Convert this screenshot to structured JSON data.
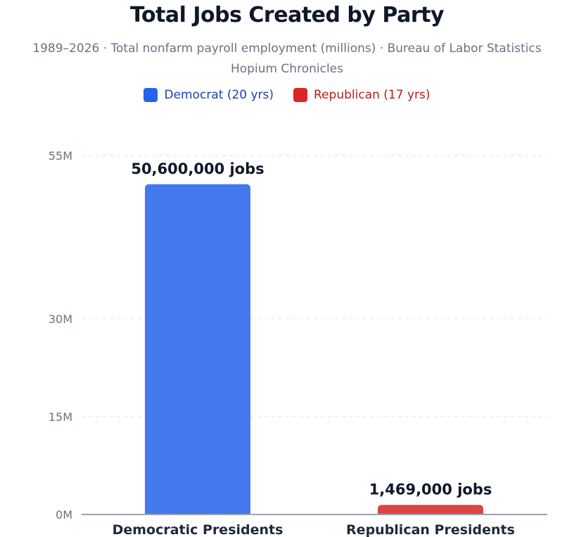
{
  "title": "Total Jobs Created by Party",
  "subtitle_line1": "1989–2026 · Total nonfarm payroll employment (millions) · Bureau of Labor Statistics",
  "subtitle_line2": "Hopium Chronicles",
  "legend": [
    {
      "label": "Democrat (20 yrs)",
      "color": "#2563eb",
      "text_color": "#1e40af"
    },
    {
      "label": "Republican (17 yrs)",
      "color": "#dc2626",
      "text_color": "#b91c1c"
    }
  ],
  "chart_data": {
    "type": "bar",
    "categories": [
      "Democratic Presidents",
      "Republican Presidents"
    ],
    "values": [
      50600000,
      1469000
    ],
    "value_labels": [
      "50,600,000 jobs",
      "1,469,000 jobs"
    ],
    "bar_colors": [
      "#4479ee",
      "#dc4545"
    ],
    "y_ticks": [
      0,
      15000000,
      30000000,
      55000000
    ],
    "y_tick_labels": [
      "0M",
      "15M",
      "30M",
      "55M"
    ],
    "ylim": [
      0,
      55000000
    ],
    "grid": true,
    "legend_position": "top-center"
  }
}
